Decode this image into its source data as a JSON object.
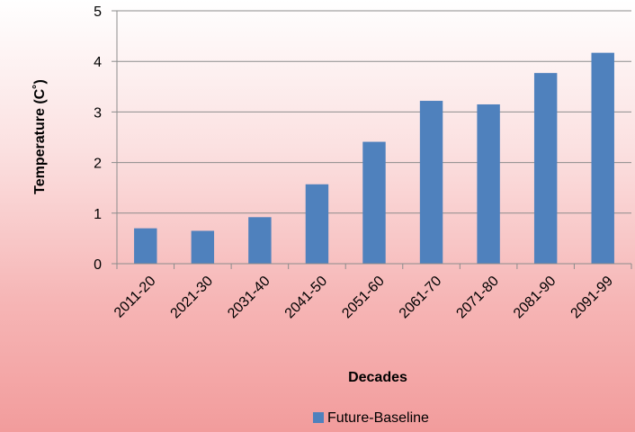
{
  "chart_data": {
    "type": "bar",
    "title": "",
    "xlabel": "Decades",
    "ylabel": "Temperature (C˚)",
    "categories": [
      "2011-20",
      "2021-30",
      "2031-40",
      "2041-50",
      "2051-60",
      "2061-70",
      "2071-80",
      "2081-90",
      "2091-99"
    ],
    "series": [
      {
        "name": "Future-Baseline",
        "values": [
          0.7,
          0.65,
          0.92,
          1.57,
          2.41,
          3.22,
          3.15,
          3.77,
          4.17
        ],
        "color": "#4f81bd"
      }
    ],
    "yticks": [
      "0",
      "1",
      "2",
      "3",
      "4",
      "5"
    ],
    "ylim": [
      0,
      5
    ],
    "grid": true,
    "legend": "bottom"
  }
}
